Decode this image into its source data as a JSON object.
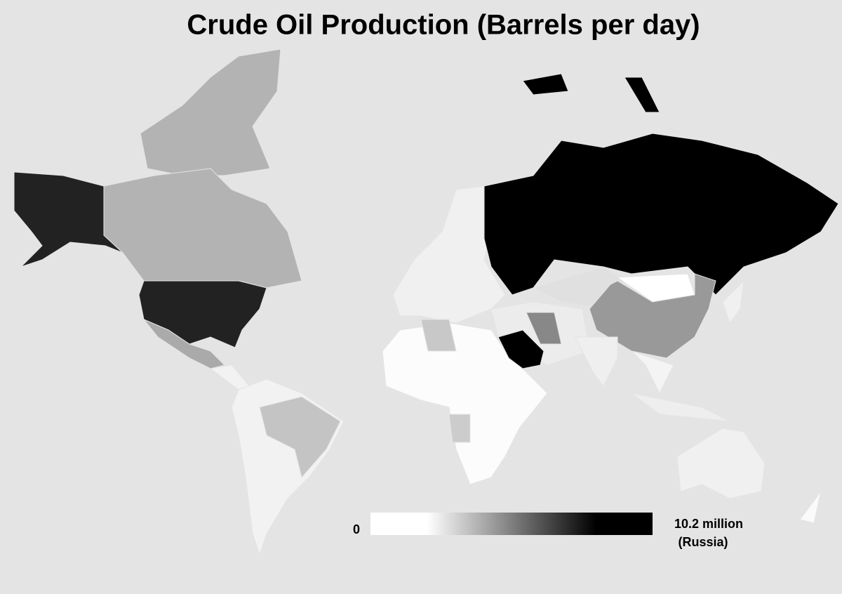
{
  "title": "Crude Oil Production (Barrels per day)",
  "legend": {
    "min": 0,
    "max": {
      "value": 10200000,
      "label": "10.2 million"
    },
    "max_note": "(Russia)",
    "colors": [
      "#ffffff",
      "#000000"
    ]
  }
}
